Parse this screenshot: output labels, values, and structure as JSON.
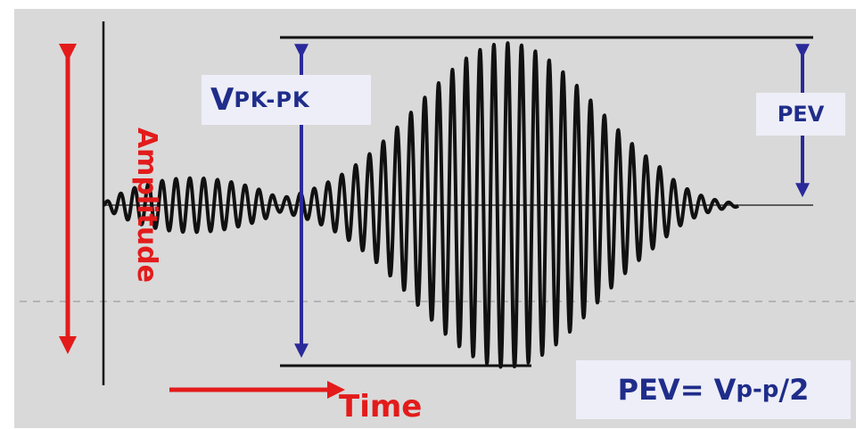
{
  "diagram": {
    "amplitude_label": "Amplitude",
    "time_label": "Time",
    "vpk_main": "V",
    "vpk_sub": "PK-PK",
    "pev_label": "PEV",
    "formula_main": "PEV= V",
    "formula_sub": "p-p",
    "formula_tail": "/2"
  },
  "colors": {
    "background": "#d9d9d9",
    "waveform": "#111111",
    "blue_arrow": "#2a2a9a",
    "red_arrow": "#e31b1b",
    "label_text": "#1f2d8a"
  }
}
